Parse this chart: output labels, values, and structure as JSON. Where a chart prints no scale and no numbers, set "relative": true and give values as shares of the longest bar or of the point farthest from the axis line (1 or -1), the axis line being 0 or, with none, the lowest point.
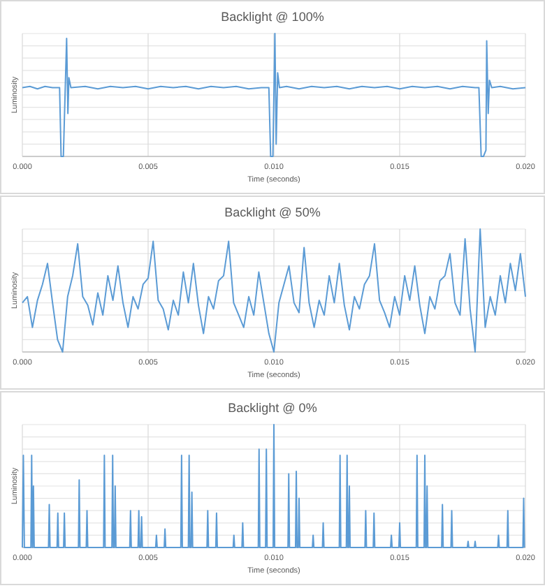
{
  "chart_data": [
    {
      "type": "line",
      "title": "Backlight @ 100%",
      "xlabel": "Time (seconds)",
      "ylabel": "Luminosity",
      "relative": true,
      "grid": true,
      "color": "#5b9bd5",
      "xlim": [
        0,
        0.02
      ],
      "xticks": [
        {
          "value": 0,
          "label": "0.000"
        },
        {
          "value": 0.005,
          "label": "0.005"
        },
        {
          "value": 0.01,
          "label": "0.010"
        },
        {
          "value": 0.015,
          "label": "0.015"
        },
        {
          "value": 0.02,
          "label": "0.020"
        }
      ],
      "x": [
        0,
        0.0003,
        0.0006,
        0.0009,
        0.0012,
        0.00148,
        0.00154,
        0.00163,
        0.00176,
        0.00181,
        0.00185,
        0.00193,
        0.0025,
        0.003,
        0.0035,
        0.004,
        0.0045,
        0.005,
        0.0055,
        0.006,
        0.0065,
        0.007,
        0.0075,
        0.008,
        0.0085,
        0.009,
        0.0095,
        0.0098,
        0.00987,
        0.00996,
        0.01004,
        0.01009,
        0.01015,
        0.01022,
        0.0105,
        0.011,
        0.0115,
        0.012,
        0.0125,
        0.013,
        0.0135,
        0.014,
        0.0145,
        0.015,
        0.0155,
        0.016,
        0.0165,
        0.017,
        0.0175,
        0.018,
        0.01815,
        0.01824,
        0.01833,
        0.01843,
        0.01846,
        0.01852,
        0.01857,
        0.01866,
        0.019,
        0.0195,
        0.02
      ],
      "values": [
        0.56,
        0.57,
        0.55,
        0.57,
        0.56,
        0.56,
        0,
        0,
        0.96,
        0.35,
        0.64,
        0.56,
        0.57,
        0.55,
        0.57,
        0.56,
        0.57,
        0.55,
        0.57,
        0.56,
        0.57,
        0.55,
        0.57,
        0.56,
        0.57,
        0.55,
        0.56,
        0.56,
        0,
        0,
        1,
        0.1,
        0.68,
        0.56,
        0.57,
        0.55,
        0.57,
        0.56,
        0.57,
        0.55,
        0.57,
        0.56,
        0.57,
        0.55,
        0.57,
        0.56,
        0.57,
        0.55,
        0.57,
        0.56,
        0.56,
        0,
        0,
        0.05,
        0.94,
        0.35,
        0.62,
        0.56,
        0.57,
        0.55,
        0.56
      ]
    },
    {
      "type": "line",
      "title": "Backlight @ 50%",
      "xlabel": "Time (seconds)",
      "ylabel": "Luminosity",
      "relative": true,
      "grid": true,
      "color": "#5b9bd5",
      "xlim": [
        0,
        0.02
      ],
      "xticks": [
        {
          "value": 0,
          "label": "0.000"
        },
        {
          "value": 0.005,
          "label": "0.005"
        },
        {
          "value": 0.01,
          "label": "0.010"
        },
        {
          "value": 0.015,
          "label": "0.015"
        },
        {
          "value": 0.02,
          "label": "0.020"
        }
      ],
      "x": [
        0,
        0.0002,
        0.0004,
        0.0006,
        0.0008,
        0.001,
        0.0012,
        0.0014,
        0.0016,
        0.0018,
        0.002,
        0.0022,
        0.0024,
        0.0026,
        0.0028,
        0.003,
        0.0032,
        0.0034,
        0.0036,
        0.0038,
        0.004,
        0.0042,
        0.0044,
        0.0046,
        0.0048,
        0.005,
        0.0052,
        0.0054,
        0.0056,
        0.0058,
        0.006,
        0.0062,
        0.0064,
        0.0066,
        0.0068,
        0.007,
        0.0072,
        0.0074,
        0.0076,
        0.0078,
        0.008,
        0.0082,
        0.0084,
        0.0086,
        0.0088,
        0.009,
        0.0092,
        0.0094,
        0.0096,
        0.0098,
        0.01,
        0.0102,
        0.0104,
        0.0106,
        0.0108,
        0.011,
        0.0112,
        0.0114,
        0.0116,
        0.0118,
        0.012,
        0.0122,
        0.0124,
        0.0126,
        0.0128,
        0.013,
        0.0132,
        0.0134,
        0.0136,
        0.0138,
        0.014,
        0.0142,
        0.0144,
        0.0146,
        0.0148,
        0.015,
        0.0152,
        0.0154,
        0.0156,
        0.0158,
        0.016,
        0.0162,
        0.0164,
        0.0166,
        0.0168,
        0.017,
        0.0172,
        0.0174,
        0.0176,
        0.0178,
        0.018,
        0.0182,
        0.0184,
        0.0186,
        0.0188,
        0.019,
        0.0192,
        0.0194,
        0.0196,
        0.0198,
        0.02
      ],
      "values": [
        0.4,
        0.45,
        0.2,
        0.42,
        0.55,
        0.72,
        0.4,
        0.1,
        0,
        0.45,
        0.62,
        0.88,
        0.45,
        0.38,
        0.22,
        0.48,
        0.3,
        0.62,
        0.42,
        0.7,
        0.4,
        0.2,
        0.45,
        0.35,
        0.55,
        0.6,
        0.9,
        0.42,
        0.35,
        0.18,
        0.42,
        0.3,
        0.65,
        0.4,
        0.72,
        0.38,
        0.15,
        0.45,
        0.35,
        0.58,
        0.62,
        0.9,
        0.4,
        0.3,
        0.2,
        0.45,
        0.3,
        0.65,
        0.4,
        0.15,
        0,
        0.4,
        0.55,
        0.7,
        0.4,
        0.32,
        0.85,
        0.4,
        0.2,
        0.42,
        0.3,
        0.62,
        0.4,
        0.72,
        0.38,
        0.18,
        0.45,
        0.35,
        0.55,
        0.62,
        0.88,
        0.42,
        0.32,
        0.2,
        0.45,
        0.3,
        0.62,
        0.42,
        0.7,
        0.38,
        0.15,
        0.45,
        0.35,
        0.58,
        0.62,
        0.8,
        0.4,
        0.3,
        0.92,
        0.35,
        0,
        1,
        0.2,
        0.45,
        0.3,
        0.62,
        0.4,
        0.72,
        0.5,
        0.8,
        0.45
      ]
    },
    {
      "type": "line",
      "title": "Backlight @ 0%",
      "xlabel": "Time (seconds)",
      "ylabel": "Luminosity",
      "relative": true,
      "grid": true,
      "color": "#5b9bd5",
      "xlim": [
        0,
        0.02
      ],
      "xticks": [
        {
          "value": 0,
          "label": "0.000"
        },
        {
          "value": 0.005,
          "label": "0.005"
        },
        {
          "value": 0.01,
          "label": "0.010"
        },
        {
          "value": 0.015,
          "label": "0.015"
        },
        {
          "value": 0.02,
          "label": "0.020"
        }
      ],
      "x": [
        0,
        4e-05,
        8e-05,
        0.00034,
        0.00037,
        0.0004,
        0.00041,
        0.00044,
        0.00047,
        0.00104,
        0.00107,
        0.0011,
        0.00138,
        0.00141,
        0.00144,
        0.00164,
        0.00167,
        0.0017,
        0.00223,
        0.00226,
        0.00229,
        0.00254,
        0.00257,
        0.0026,
        0.00323,
        0.00326,
        0.00329,
        0.00356,
        0.00359,
        0.00362,
        0.00366,
        0.00369,
        0.00372,
        0.00427,
        0.0043,
        0.00433,
        0.0046,
        0.00463,
        0.00466,
        0.00471,
        0.00474,
        0.00477,
        0.0053,
        0.00533,
        0.00536,
        0.00564,
        0.00567,
        0.0057,
        0.0063,
        0.00633,
        0.00636,
        0.0066,
        0.00663,
        0.00666,
        0.00671,
        0.00674,
        0.00677,
        0.00734,
        0.00737,
        0.0074,
        0.00769,
        0.00772,
        0.00775,
        0.00838,
        0.00841,
        0.00844,
        0.00873,
        0.00876,
        0.00879,
        0.00938,
        0.00941,
        0.00944,
        0.00967,
        0.0097,
        0.00973,
        0.00997,
        0.01,
        0.01003,
        0.01056,
        0.01059,
        0.01062,
        0.01086,
        0.01089,
        0.01092,
        0.01097,
        0.011,
        0.01103,
        0.01153,
        0.01156,
        0.01159,
        0.01193,
        0.01196,
        0.01199,
        0.0126,
        0.01263,
        0.01266,
        0.01288,
        0.01291,
        0.01294,
        0.01297,
        0.013,
        0.01303,
        0.01362,
        0.01365,
        0.01368,
        0.01395,
        0.01398,
        0.01401,
        0.01464,
        0.01467,
        0.0147,
        0.01497,
        0.015,
        0.01503,
        0.01566,
        0.01569,
        0.01572,
        0.01597,
        0.016,
        0.01603,
        0.01606,
        0.01609,
        0.01612,
        0.01667,
        0.0167,
        0.01673,
        0.01704,
        0.01707,
        0.0171,
        0.01769,
        0.01772,
        0.01775,
        0.01797,
        0.018,
        0.01803,
        0.0189,
        0.01893,
        0.01896,
        0.01927,
        0.0193,
        0.01933,
        0.0199,
        0.01993,
        0.01996
      ],
      "values": [
        0,
        0.75,
        0,
        0,
        0.75,
        0,
        0,
        0.5,
        0,
        0,
        0.35,
        0,
        0,
        0.28,
        0,
        0,
        0.28,
        0,
        0,
        0.55,
        0,
        0,
        0.3,
        0,
        0,
        0.75,
        0,
        0,
        0.75,
        0,
        0,
        0.5,
        0,
        0,
        0.3,
        0,
        0,
        0.3,
        0,
        0,
        0.25,
        0,
        0,
        0.1,
        0,
        0,
        0.15,
        0,
        0,
        0.75,
        0,
        0,
        0.75,
        0,
        0,
        0.45,
        0,
        0,
        0.3,
        0,
        0,
        0.28,
        0,
        0,
        0.1,
        0,
        0,
        0.2,
        0,
        0,
        0.8,
        0,
        0,
        0.8,
        0,
        0,
        1,
        0,
        0,
        0.6,
        0,
        0,
        0.62,
        0,
        0,
        0.4,
        0,
        0,
        0.1,
        0,
        0,
        0.2,
        0,
        0,
        0.75,
        0,
        0,
        0.75,
        0,
        0,
        0.5,
        0,
        0,
        0.3,
        0,
        0,
        0.28,
        0,
        0,
        0.1,
        0,
        0,
        0.2,
        0,
        0,
        0.75,
        0,
        0,
        0.75,
        0,
        0,
        0.5,
        0,
        0,
        0.35,
        0,
        0,
        0.3,
        0,
        0,
        0.05,
        0,
        0,
        0.05,
        0,
        0,
        0.1,
        0,
        0,
        0.3,
        0,
        0,
        0.4,
        0
      ]
    }
  ]
}
